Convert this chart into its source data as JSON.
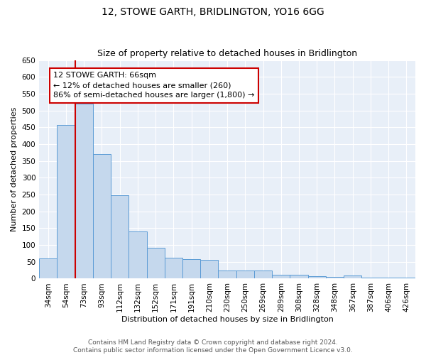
{
  "title": "12, STOWE GARTH, BRIDLINGTON, YO16 6GG",
  "subtitle": "Size of property relative to detached houses in Bridlington",
  "xlabel": "Distribution of detached houses by size in Bridlington",
  "ylabel": "Number of detached properties",
  "categories": [
    "34sqm",
    "54sqm",
    "73sqm",
    "93sqm",
    "112sqm",
    "132sqm",
    "152sqm",
    "171sqm",
    "191sqm",
    "210sqm",
    "230sqm",
    "250sqm",
    "269sqm",
    "289sqm",
    "308sqm",
    "328sqm",
    "348sqm",
    "367sqm",
    "387sqm",
    "406sqm",
    "426sqm"
  ],
  "values": [
    60,
    457,
    520,
    370,
    248,
    140,
    92,
    62,
    57,
    55,
    25,
    25,
    25,
    11,
    11,
    7,
    5,
    9,
    4,
    4,
    4
  ],
  "bar_color": "#c5d8ed",
  "bar_edge_color": "#5b9bd5",
  "red_line_x": 1.5,
  "annotation_title": "12 STOWE GARTH: 66sqm",
  "annotation_line1": "← 12% of detached houses are smaller (260)",
  "annotation_line2": "86% of semi-detached houses are larger (1,800) →",
  "annotation_box_color": "#ffffff",
  "annotation_box_edge": "#cc0000",
  "red_line_color": "#cc0000",
  "footer_line1": "Contains HM Land Registry data © Crown copyright and database right 2024.",
  "footer_line2": "Contains public sector information licensed under the Open Government Licence v3.0.",
  "ylim": [
    0,
    650
  ],
  "yticks": [
    0,
    50,
    100,
    150,
    200,
    250,
    300,
    350,
    400,
    450,
    500,
    550,
    600,
    650
  ],
  "bg_color": "#e8eff8",
  "title_fontsize": 10,
  "subtitle_fontsize": 9,
  "axis_label_fontsize": 8,
  "tick_fontsize": 7.5,
  "annotation_fontsize": 8,
  "footer_fontsize": 6.5
}
